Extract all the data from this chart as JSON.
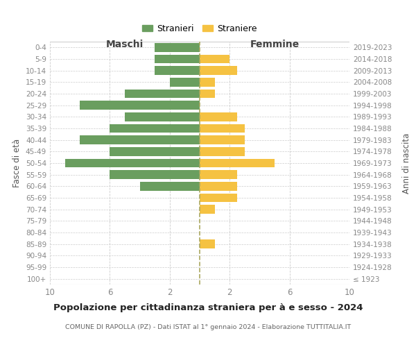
{
  "age_groups": [
    "100+",
    "95-99",
    "90-94",
    "85-89",
    "80-84",
    "75-79",
    "70-74",
    "65-69",
    "60-64",
    "55-59",
    "50-54",
    "45-49",
    "40-44",
    "35-39",
    "30-34",
    "25-29",
    "20-24",
    "15-19",
    "10-14",
    "5-9",
    "0-4"
  ],
  "birth_years": [
    "≤ 1923",
    "1924-1928",
    "1929-1933",
    "1934-1938",
    "1939-1943",
    "1944-1948",
    "1949-1953",
    "1954-1958",
    "1959-1963",
    "1964-1968",
    "1969-1973",
    "1974-1978",
    "1979-1983",
    "1984-1988",
    "1989-1993",
    "1994-1998",
    "1999-2003",
    "2004-2008",
    "2009-2013",
    "2014-2018",
    "2019-2023"
  ],
  "males": [
    0,
    0,
    0,
    0,
    0,
    0,
    0,
    0,
    4,
    6,
    9,
    6,
    8,
    6,
    5,
    8,
    5,
    2,
    3,
    3,
    3
  ],
  "females": [
    0,
    0,
    0,
    1,
    0,
    0,
    1,
    2.5,
    2.5,
    2.5,
    5,
    3,
    3,
    3,
    2.5,
    0,
    1,
    1,
    2.5,
    2,
    0
  ],
  "male_color": "#6a9e5f",
  "female_color": "#f5c242",
  "title": "Popolazione per cittadinanza straniera per à e sesso - 2024",
  "subtitle": "COMUNE DI RAPOLLA (PZ) - Dati ISTAT al 1° gennaio 2024 - Elaborazione TUTTITALIA.IT",
  "xlabel_left": "Maschi",
  "xlabel_right": "Femmine",
  "ylabel_left": "Fasce di età",
  "ylabel_right": "Anni di nascita",
  "legend_male": "Stranieri",
  "legend_female": "Straniere",
  "xlim": 10,
  "background_color": "#ffffff",
  "grid_color": "#cccccc"
}
